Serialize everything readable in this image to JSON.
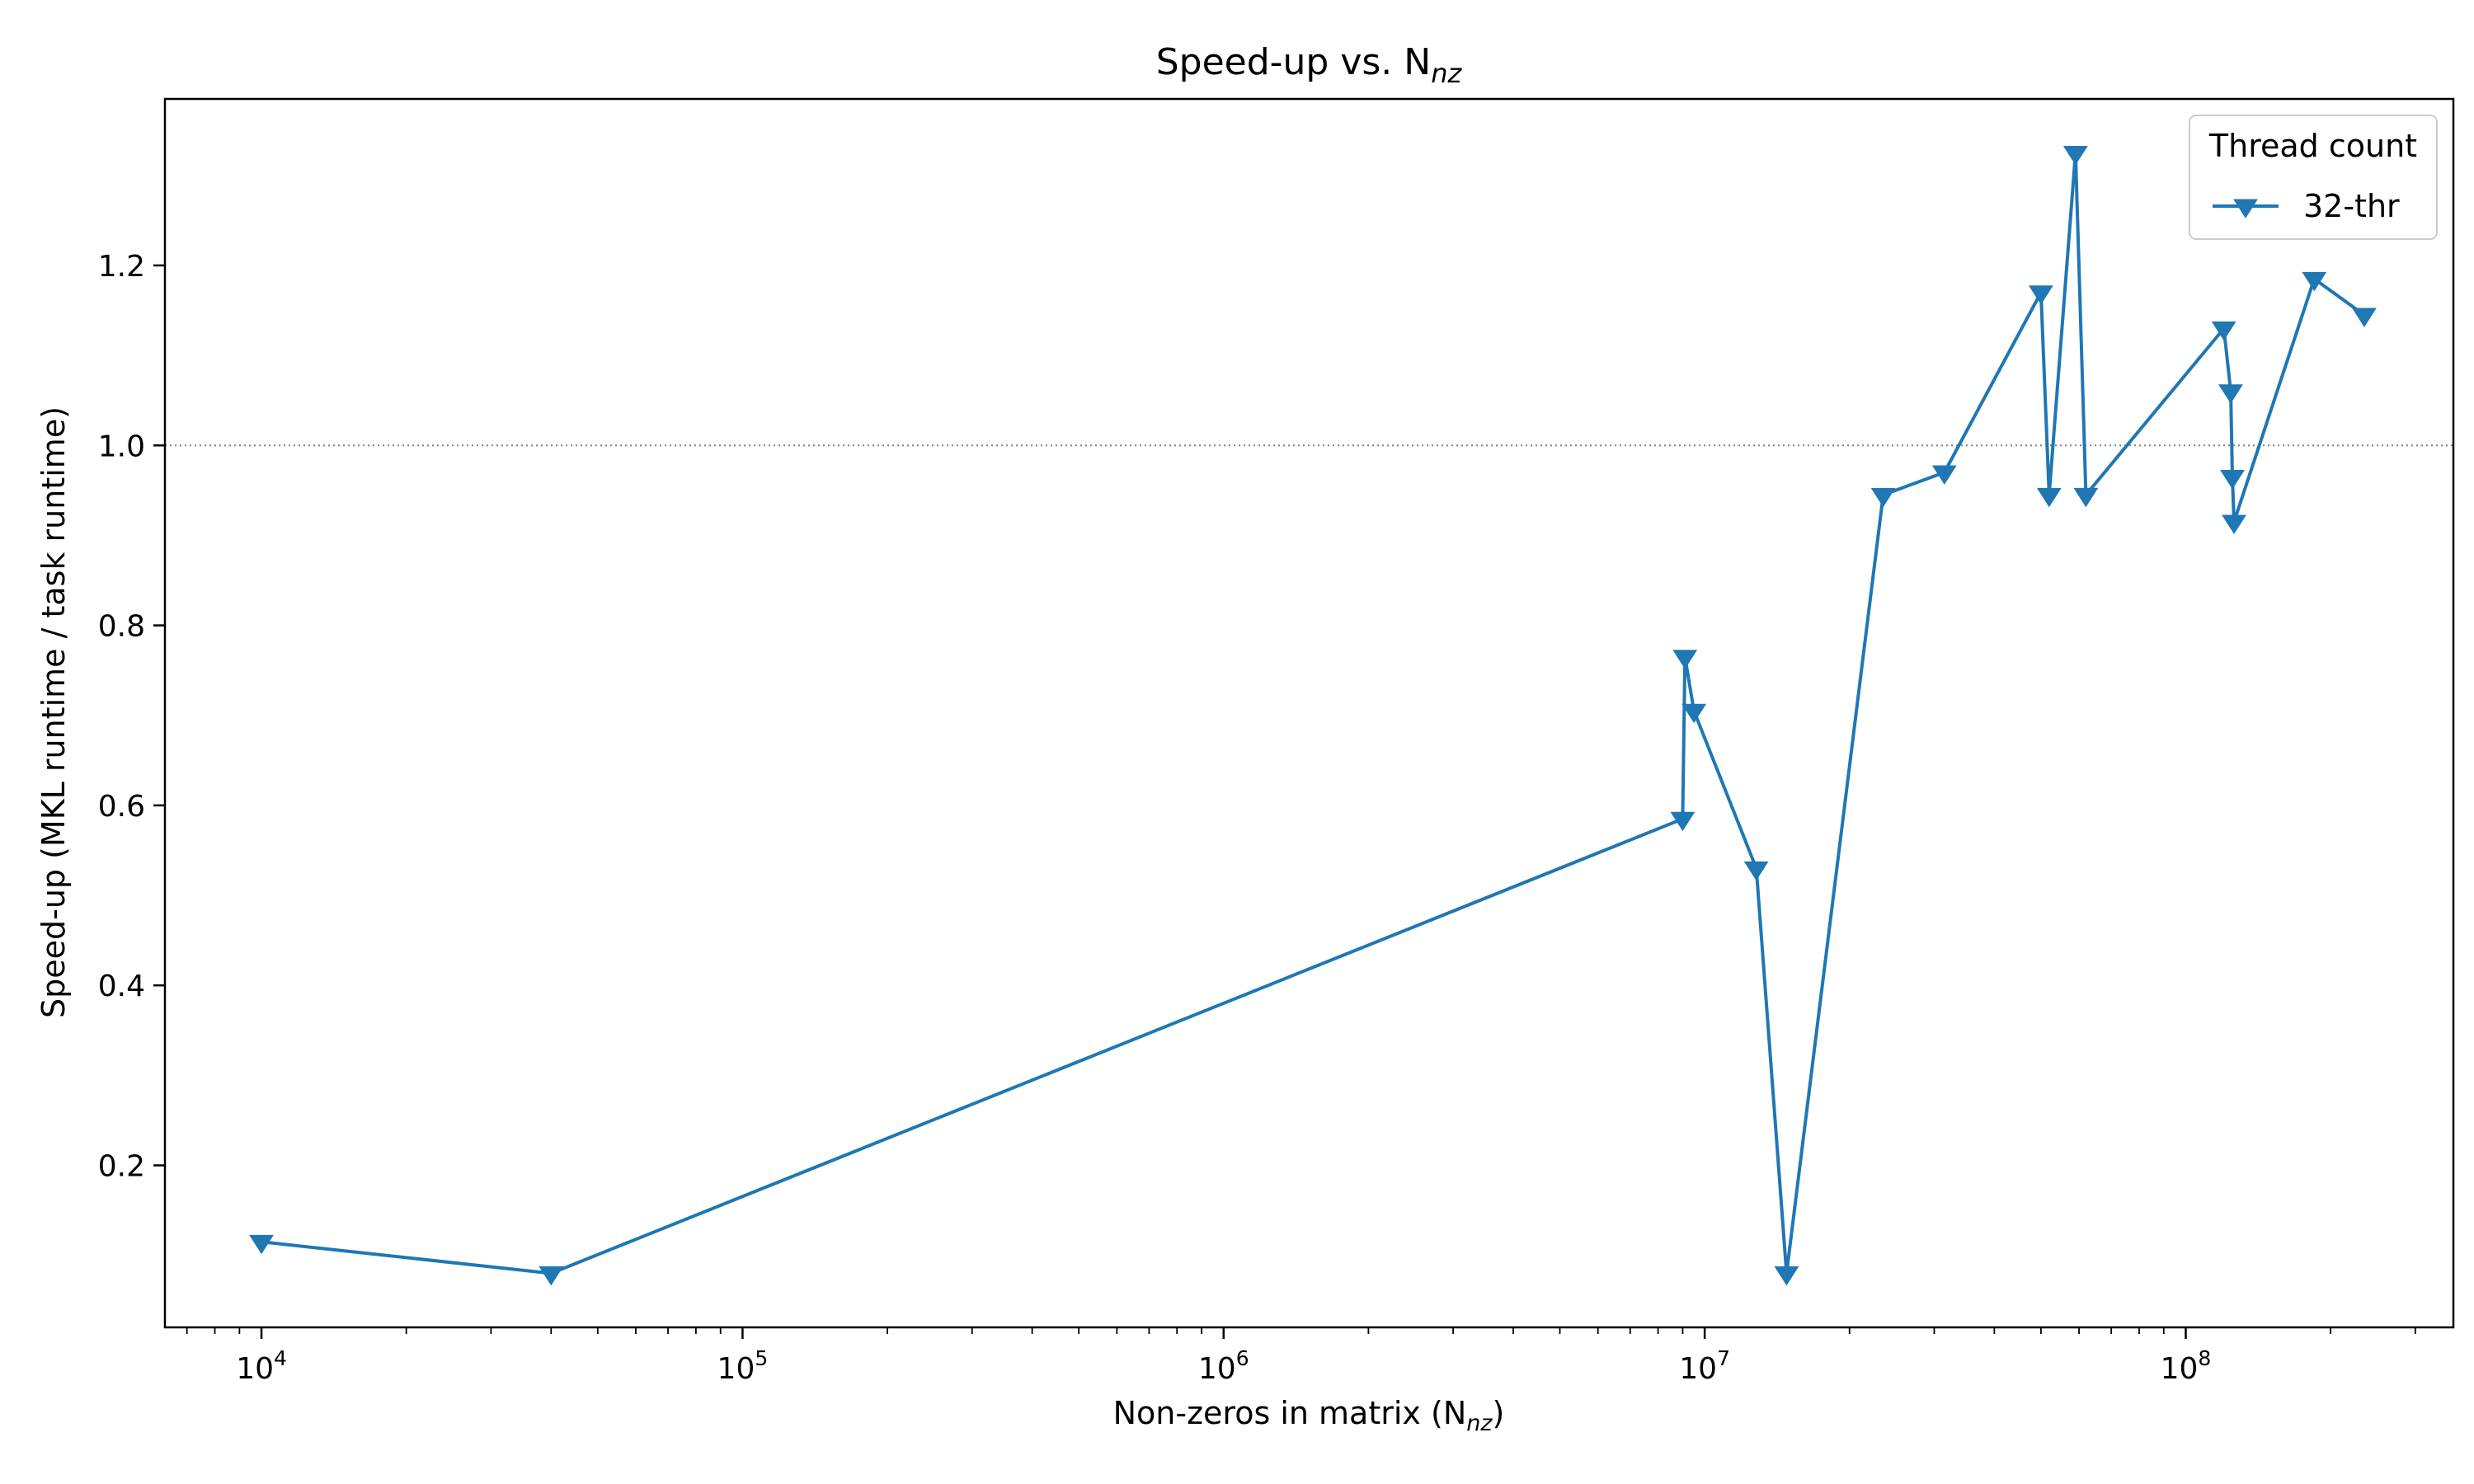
{
  "chart_data": {
    "type": "line",
    "title": "Speed-up vs. N",
    "title_sub": "nz",
    "xlabel": "Non-zeros in matrix (N",
    "xlabel_sub": "nz",
    "xlabel_suffix": ")",
    "ylabel": "Speed-up (MKL runtime / task runtime)",
    "xscale": "log",
    "xlim": [
      6300,
      360000000
    ],
    "ylim": [
      0.02,
      1.385
    ],
    "x_major_ticks": [
      10000,
      100000,
      1000000,
      10000000,
      100000000
    ],
    "x_tick_exponents": [
      "4",
      "5",
      "6",
      "7",
      "8"
    ],
    "x_tick_base": "10",
    "y_ticks": [
      0.2,
      0.4,
      0.6,
      0.8,
      1.0,
      1.2
    ],
    "y_tick_labels": [
      "0.2",
      "0.4",
      "0.6",
      "0.8",
      "1.0",
      "1.2"
    ],
    "reference_line": {
      "y": 1.0,
      "style": "dotted",
      "color": "#808080"
    },
    "grid": false,
    "legend": {
      "title": "Thread count",
      "placement": "top-right"
    },
    "series": [
      {
        "name": "32-thr",
        "color": "#1f77b4",
        "marker": "triangle-down",
        "x": [
          10000,
          40000,
          9000000,
          9100000,
          9500000,
          12800000,
          14800000,
          23500000,
          31500000,
          50000000,
          52000000,
          59000000,
          62000000,
          120000000,
          124000000,
          125000000,
          126000000,
          185000000,
          235000000
        ],
        "y": [
          0.115,
          0.08,
          0.585,
          0.765,
          0.705,
          0.53,
          0.08,
          0.945,
          0.97,
          1.17,
          0.945,
          1.325,
          0.945,
          1.13,
          1.06,
          0.965,
          0.915,
          1.185,
          1.145
        ]
      }
    ]
  }
}
